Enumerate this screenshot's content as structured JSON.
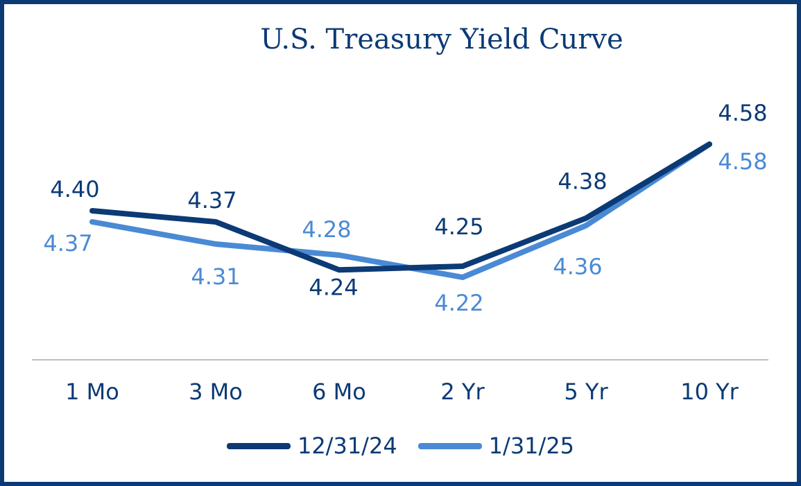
{
  "colors": {
    "frame": "#0b3a75",
    "series_dark": "#0b3a75",
    "series_light": "#4a8ad4",
    "axis_line": "#bfbfbf"
  },
  "chart_data": {
    "type": "line",
    "title": "U.S. Treasury Yield Curve",
    "xlabel": "",
    "ylabel": "",
    "categories": [
      "1 Mo",
      "3 Mo",
      "6 Mo",
      "2 Yr",
      "5 Yr",
      "10 Yr"
    ],
    "series": [
      {
        "name": "12/31/24",
        "color": "#0b3a75",
        "values": [
          4.4,
          4.37,
          4.24,
          4.25,
          4.38,
          4.58
        ],
        "labels": [
          "4.40",
          "4.37",
          "4.24",
          "4.25",
          "4.38",
          "4.58"
        ]
      },
      {
        "name": "1/31/25",
        "color": "#4a8ad4",
        "values": [
          4.37,
          4.31,
          4.28,
          4.22,
          4.36,
          4.58
        ],
        "labels": [
          "4.37",
          "4.31",
          "4.28",
          "4.22",
          "4.36",
          "4.58"
        ]
      }
    ],
    "grid": false,
    "legend_position": "bottom"
  }
}
